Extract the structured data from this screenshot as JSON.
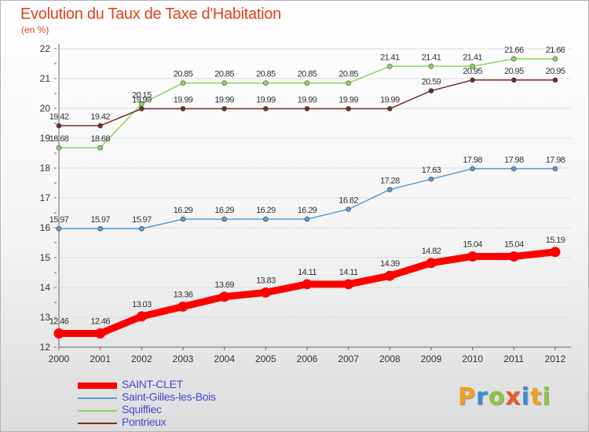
{
  "title": "Evolution du Taux de Taxe d'Habitation",
  "unit": "(en %)",
  "logo": {
    "text": "Proxiti",
    "colors": [
      "#f0a020",
      "#3c8ad8",
      "#8bc53f",
      "#e65a2b",
      "#3c8ad8",
      "#f0a020",
      "#8bc53f"
    ]
  },
  "chart_data": {
    "type": "line",
    "title": "Evolution du Taux de Taxe d'Habitation",
    "ylabel": "(en %)",
    "xlabel": "",
    "x": [
      2000,
      2001,
      2002,
      2003,
      2004,
      2005,
      2006,
      2007,
      2008,
      2009,
      2010,
      2011,
      2012
    ],
    "ylim": [
      12,
      22
    ],
    "yticks": [
      12,
      13,
      14,
      15,
      16,
      17,
      18,
      19,
      20,
      21,
      22
    ],
    "legend_position": "bottom-left",
    "series": [
      {
        "name": "SAINT-CLET",
        "color": "#ff0000",
        "width": 9,
        "marker": 6.5,
        "values": [
          12.46,
          12.46,
          13.03,
          13.36,
          13.69,
          13.83,
          14.11,
          14.11,
          14.39,
          14.82,
          15.04,
          15.04,
          15.19
        ],
        "labels": [
          "12.46",
          "12.46",
          "13.03",
          "13.36",
          "13.69",
          "13.83",
          "14.11",
          "14.11",
          "14.39",
          "14.82",
          "15.04",
          "15.04",
          "15.19"
        ]
      },
      {
        "name": "Saint-Gilles-les-Bois",
        "color": "#5b9bd5",
        "width": 1.5,
        "marker": 3,
        "values": [
          15.97,
          15.97,
          15.97,
          16.29,
          16.29,
          16.29,
          16.29,
          16.62,
          17.28,
          17.63,
          17.98,
          17.98,
          17.98
        ],
        "labels": [
          "15.97",
          "15.97",
          "15.97",
          "16.29",
          "16.29",
          "16.29",
          "16.29",
          "16.62",
          "17.28",
          "17.63",
          "17.98",
          "17.98",
          "17.98"
        ]
      },
      {
        "name": "Squiffiec",
        "color": "#8cd65a",
        "width": 1.5,
        "marker": 3,
        "values": [
          18.68,
          18.68,
          20.15,
          20.85,
          20.85,
          20.85,
          20.85,
          20.85,
          21.41,
          21.41,
          21.41,
          21.66,
          21.66
        ],
        "labels": [
          "18.68",
          "18.68",
          "20.15",
          "20.85",
          "20.85",
          "20.85",
          "20.85",
          "20.85",
          "21.41",
          "21.41",
          "21.41",
          "21.66",
          "21.66"
        ]
      },
      {
        "name": "Pontrieux",
        "color": "#7a2a2a",
        "width": 1.5,
        "marker": 3,
        "values": [
          19.42,
          19.42,
          19.99,
          19.99,
          19.99,
          19.99,
          19.99,
          19.99,
          19.99,
          20.59,
          20.95,
          20.95,
          20.95
        ],
        "labels": [
          "19.42",
          "19.42",
          "19.99",
          "19.99",
          "19.99",
          "19.99",
          "19.99",
          "19.99",
          "19.99",
          "20.59",
          "20.95",
          "20.95",
          "20.95"
        ]
      }
    ]
  }
}
